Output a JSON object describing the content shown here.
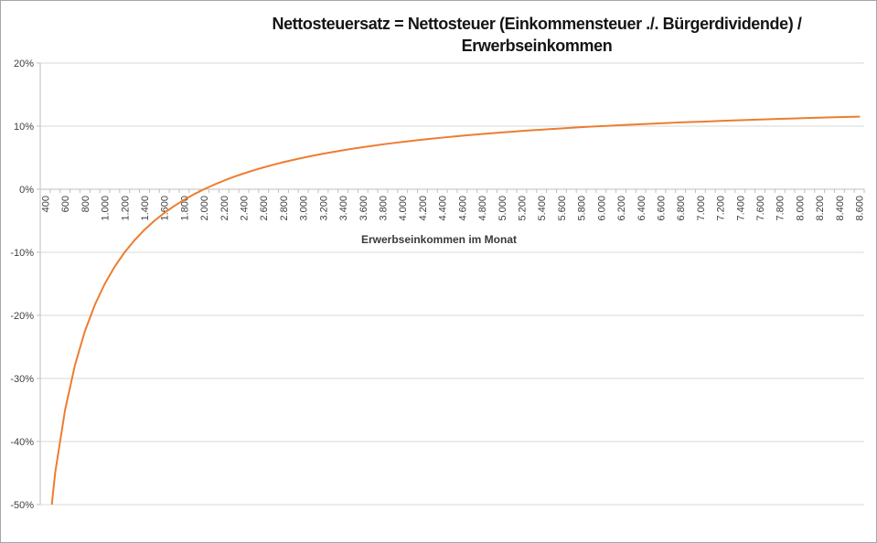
{
  "window": {
    "background_color": "#ffffff",
    "border_color": "#a6a6a6"
  },
  "chart_data": {
    "type": "line",
    "title": "Nettosteuersatz = Nettosteuer (Einkommensteuer ./. Bürgerdividende) / Erwerbseinkommen",
    "title_lines": [
      "Nettosteuersatz = Nettosteuer (Einkommensteuer ./. Bürgerdividende) /",
      "Erwerbseinkommen"
    ],
    "xlabel": "Erwerbseinkommen im Monat",
    "ylabel": "",
    "legend": "none",
    "grid": "horizontal",
    "ylim": [
      -0.5,
      0.2
    ],
    "y_ticks": [
      {
        "label": "20%",
        "value": 0.2
      },
      {
        "label": "10%",
        "value": 0.1
      },
      {
        "label": "0%",
        "value": 0.0
      },
      {
        "label": "-10%",
        "value": -0.1
      },
      {
        "label": "-20%",
        "value": -0.2
      },
      {
        "label": "-30%",
        "value": -0.3
      },
      {
        "label": "-40%",
        "value": -0.4
      },
      {
        "label": "-50%",
        "value": -0.5
      }
    ],
    "x_start": 400,
    "x_step": 100,
    "x_end": 8600,
    "x_label_every": 2,
    "x_tick_labels": [
      "400",
      "600",
      "800",
      "1.000",
      "1.200",
      "1.400",
      "1.600",
      "1.800",
      "2.000",
      "2.200",
      "2.400",
      "2.600",
      "2.800",
      "3.000",
      "3.200",
      "3.400",
      "3.600",
      "3.800",
      "4.000",
      "4.200",
      "4.400",
      "4.600",
      "4.800",
      "5.000",
      "5.200",
      "5.400",
      "5.600",
      "5.800",
      "6.000",
      "6.200",
      "6.400",
      "6.600",
      "6.800",
      "7.000",
      "7.200",
      "7.400",
      "7.600",
      "7.800",
      "8.000",
      "8.200",
      "8.400",
      "8.600"
    ],
    "series": [
      {
        "name": "Nettosteuersatz",
        "color": "#ED7D31",
        "x": [
          400,
          500,
          600,
          700,
          800,
          900,
          1000,
          1100,
          1200,
          1300,
          1400,
          1500,
          1600,
          1700,
          1800,
          1900,
          2000,
          2100,
          2200,
          2300,
          2400,
          2500,
          2600,
          2700,
          2800,
          2900,
          3000,
          3100,
          3200,
          3300,
          3400,
          3500,
          3600,
          3700,
          3800,
          3900,
          4000,
          4100,
          4200,
          4300,
          4400,
          4500,
          4600,
          4700,
          4800,
          4900,
          5000,
          5100,
          5200,
          5300,
          5400,
          5500,
          5600,
          5700,
          5800,
          5900,
          6000,
          6100,
          6200,
          6300,
          6400,
          6500,
          6600,
          6700,
          6800,
          6900,
          7000,
          7100,
          7200,
          7300,
          7400,
          7500,
          7600,
          7700,
          7800,
          7900,
          8000,
          8100,
          8200,
          8300,
          8400,
          8500,
          8600
        ],
        "values": [
          -0.6,
          -0.45,
          -0.35,
          -0.2786,
          -0.225,
          -0.1833,
          -0.15,
          -0.1227,
          -0.1,
          -0.0808,
          -0.0643,
          -0.05,
          -0.0375,
          -0.0265,
          -0.0167,
          -0.0079,
          0,
          0.0071,
          0.0136,
          0.0196,
          0.025,
          0.03,
          0.0346,
          0.0389,
          0.0429,
          0.0466,
          0.05,
          0.0532,
          0.0563,
          0.0591,
          0.0618,
          0.0643,
          0.0667,
          0.0689,
          0.0711,
          0.0731,
          0.075,
          0.0768,
          0.0786,
          0.0802,
          0.0818,
          0.0833,
          0.0848,
          0.0862,
          0.0875,
          0.0888,
          0.09,
          0.0912,
          0.0923,
          0.0934,
          0.0944,
          0.0955,
          0.0964,
          0.0974,
          0.0983,
          0.0992,
          0.1,
          0.1008,
          0.1016,
          0.1024,
          0.1031,
          0.1038,
          0.1045,
          0.1052,
          0.1059,
          0.1065,
          0.1071,
          0.1077,
          0.1083,
          0.1089,
          0.1095,
          0.11,
          0.1105,
          0.111,
          0.1115,
          0.112,
          0.1125,
          0.113,
          0.1134,
          0.1139,
          0.1143,
          0.1147,
          0.1151
        ]
      }
    ],
    "colors": {
      "line": "#ED7D31",
      "gridline": "#D9D9D9",
      "axis_line": "#BFBFBF",
      "tick_text": "#3f3f3f",
      "title_text": "#151515"
    }
  }
}
